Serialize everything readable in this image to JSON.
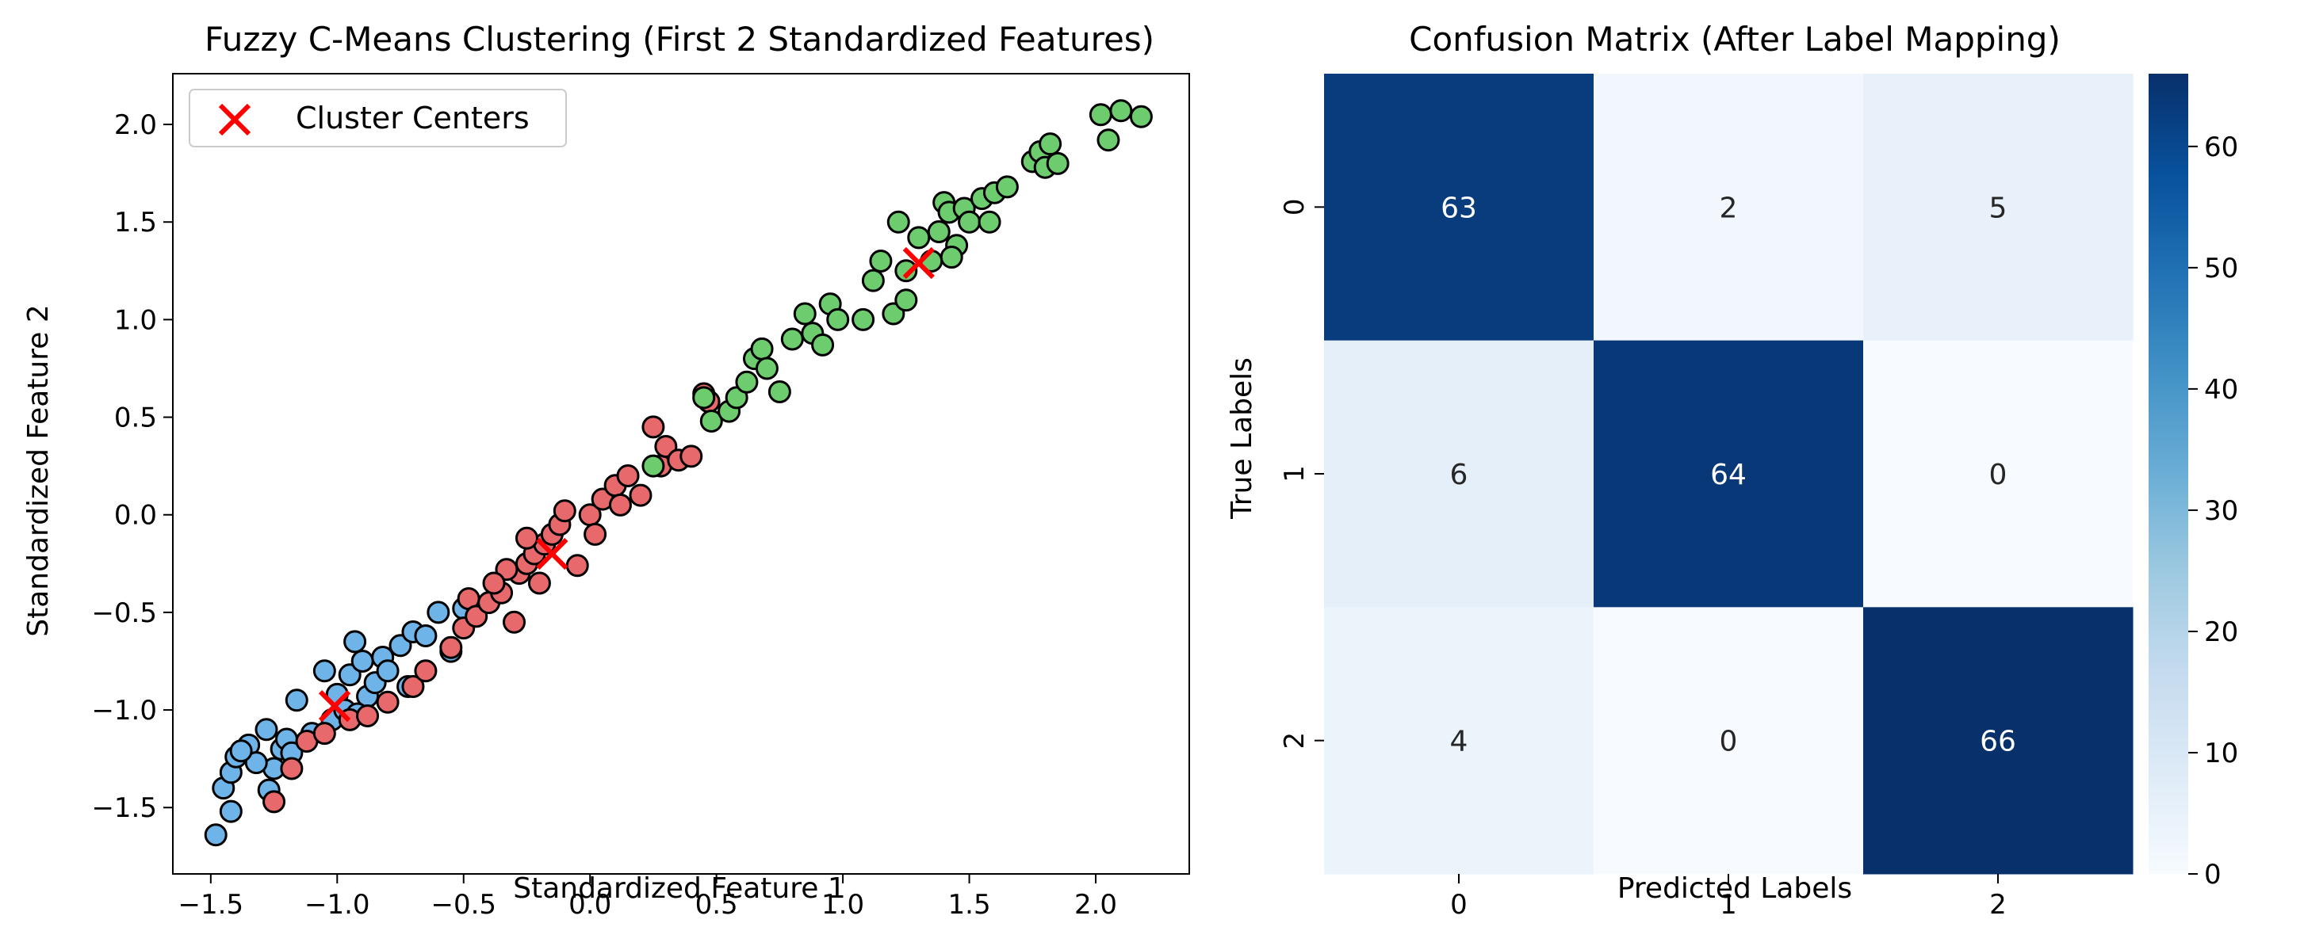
{
  "chart_data": [
    {
      "type": "scatter",
      "title": "Fuzzy C-Means Clustering (First 2 Standardized Features)",
      "xlabel": "Standardized Feature 1",
      "ylabel": "Standardized Feature 2",
      "xlim": [
        -1.65,
        2.37
      ],
      "ylim": [
        -1.84,
        2.26
      ],
      "xticks": [
        -1.5,
        -1.0,
        -0.5,
        0.0,
        0.5,
        1.0,
        1.5,
        2.0
      ],
      "xtick_labels": [
        "−1.5",
        "−1.0",
        "−0.5",
        "0.0",
        "0.5",
        "1.0",
        "1.5",
        "2.0"
      ],
      "yticks": [
        -1.5,
        -1.0,
        -0.5,
        0.0,
        0.5,
        1.0,
        1.5,
        2.0
      ],
      "ytick_labels": [
        "−1.5",
        "−1.0",
        "−0.5",
        "0.0",
        "0.5",
        "1.0",
        "1.5",
        "2.0"
      ],
      "legend": {
        "placement": "top-left",
        "entries": [
          "Cluster Centers"
        ]
      },
      "grid": false,
      "colors": {
        "cluster_0": "#e8696b",
        "cluster_1": "#6fb4e8",
        "cluster_2": "#6dcc6d",
        "centers": "#ff0000",
        "edge": "#000000"
      },
      "series": [
        {
          "cluster": 1,
          "color": "#6fb4e8",
          "points": [
            [
              -1.48,
              -1.64
            ],
            [
              -1.42,
              -1.52
            ],
            [
              -1.45,
              -1.4
            ],
            [
              -1.42,
              -1.32
            ],
            [
              -1.4,
              -1.24
            ],
            [
              -1.35,
              -1.18
            ],
            [
              -1.27,
              -1.41
            ],
            [
              -1.25,
              -1.3
            ],
            [
              -1.22,
              -1.2
            ],
            [
              -1.2,
              -1.15
            ],
            [
              -1.28,
              -1.1
            ],
            [
              -1.16,
              -0.95
            ],
            [
              -1.1,
              -1.12
            ],
            [
              -1.05,
              -0.8
            ],
            [
              -1.02,
              -1.05
            ],
            [
              -1.0,
              -0.92
            ],
            [
              -0.97,
              -1.0
            ],
            [
              -0.95,
              -0.82
            ],
            [
              -0.93,
              -0.65
            ],
            [
              -0.9,
              -0.75
            ],
            [
              -0.88,
              -0.93
            ],
            [
              -0.85,
              -0.86
            ],
            [
              -0.82,
              -0.73
            ],
            [
              -0.8,
              -0.8
            ],
            [
              -0.75,
              -0.67
            ],
            [
              -0.72,
              -0.88
            ],
            [
              -0.7,
              -0.6
            ],
            [
              -0.65,
              -0.62
            ],
            [
              -0.6,
              -0.5
            ],
            [
              -0.55,
              -0.7
            ],
            [
              -0.5,
              -0.48
            ],
            [
              -1.32,
              -1.27
            ],
            [
              -1.18,
              -1.22
            ],
            [
              -1.38,
              -1.21
            ],
            [
              -0.92,
              -1.02
            ]
          ]
        },
        {
          "cluster": 0,
          "color": "#e8696b",
          "points": [
            [
              -1.25,
              -1.47
            ],
            [
              -1.18,
              -1.3
            ],
            [
              -1.12,
              -1.16
            ],
            [
              -1.05,
              -1.12
            ],
            [
              -0.95,
              -1.05
            ],
            [
              -0.88,
              -1.03
            ],
            [
              -0.8,
              -0.96
            ],
            [
              -0.7,
              -0.88
            ],
            [
              -0.65,
              -0.8
            ],
            [
              -0.55,
              -0.68
            ],
            [
              -0.5,
              -0.58
            ],
            [
              -0.48,
              -0.43
            ],
            [
              -0.45,
              -0.52
            ],
            [
              -0.4,
              -0.45
            ],
            [
              -0.35,
              -0.4
            ],
            [
              -0.3,
              -0.55
            ],
            [
              -0.28,
              -0.3
            ],
            [
              -0.25,
              -0.25
            ],
            [
              -0.22,
              -0.2
            ],
            [
              -0.2,
              -0.35
            ],
            [
              -0.18,
              -0.15
            ],
            [
              -0.15,
              -0.1
            ],
            [
              -0.12,
              -0.05
            ],
            [
              -0.1,
              0.02
            ],
            [
              -0.05,
              -0.26
            ],
            [
              0.0,
              0.0
            ],
            [
              0.02,
              -0.1
            ],
            [
              0.05,
              0.08
            ],
            [
              0.1,
              0.15
            ],
            [
              0.15,
              0.2
            ],
            [
              0.2,
              0.1
            ],
            [
              0.25,
              0.45
            ],
            [
              0.28,
              0.25
            ],
            [
              0.3,
              0.35
            ],
            [
              0.35,
              0.28
            ],
            [
              0.4,
              0.3
            ],
            [
              0.45,
              0.62
            ],
            [
              0.47,
              0.58
            ],
            [
              -0.33,
              -0.28
            ],
            [
              -0.25,
              -0.12
            ],
            [
              0.12,
              0.05
            ],
            [
              -0.38,
              -0.35
            ]
          ]
        },
        {
          "cluster": 2,
          "color": "#6dcc6d",
          "points": [
            [
              0.25,
              0.25
            ],
            [
              0.45,
              0.6
            ],
            [
              0.48,
              0.48
            ],
            [
              0.55,
              0.53
            ],
            [
              0.58,
              0.6
            ],
            [
              0.62,
              0.68
            ],
            [
              0.65,
              0.8
            ],
            [
              0.68,
              0.85
            ],
            [
              0.7,
              0.75
            ],
            [
              0.75,
              0.63
            ],
            [
              0.8,
              0.9
            ],
            [
              0.85,
              1.03
            ],
            [
              0.88,
              0.93
            ],
            [
              0.92,
              0.87
            ],
            [
              0.95,
              1.08
            ],
            [
              0.98,
              1.0
            ],
            [
              1.08,
              1.0
            ],
            [
              1.12,
              1.2
            ],
            [
              1.15,
              1.3
            ],
            [
              1.2,
              1.03
            ],
            [
              1.22,
              1.5
            ],
            [
              1.25,
              1.1
            ],
            [
              1.3,
              1.42
            ],
            [
              1.35,
              1.3
            ],
            [
              1.38,
              1.45
            ],
            [
              1.4,
              1.6
            ],
            [
              1.42,
              1.55
            ],
            [
              1.45,
              1.38
            ],
            [
              1.48,
              1.57
            ],
            [
              1.5,
              1.5
            ],
            [
              1.55,
              1.62
            ],
            [
              1.58,
              1.5
            ],
            [
              1.6,
              1.65
            ],
            [
              1.65,
              1.68
            ],
            [
              1.75,
              1.81
            ],
            [
              1.78,
              1.86
            ],
            [
              1.8,
              1.78
            ],
            [
              1.82,
              1.9
            ],
            [
              1.85,
              1.8
            ],
            [
              2.02,
              2.05
            ],
            [
              2.05,
              1.92
            ],
            [
              2.1,
              2.07
            ],
            [
              2.18,
              2.04
            ],
            [
              1.43,
              1.32
            ],
            [
              1.25,
              1.25
            ]
          ]
        }
      ],
      "centers": [
        [
          -1.01,
          -0.98
        ],
        [
          -0.15,
          -0.2
        ],
        [
          1.3,
          1.29
        ]
      ]
    },
    {
      "type": "heatmap",
      "title": "Confusion Matrix (After Label Mapping)",
      "xlabel": "Predicted Labels",
      "ylabel": "True Labels",
      "categories_x": [
        "0",
        "1",
        "2"
      ],
      "categories_y": [
        "0",
        "1",
        "2"
      ],
      "matrix": [
        [
          63,
          2,
          5
        ],
        [
          6,
          64,
          0
        ],
        [
          4,
          0,
          66
        ]
      ],
      "colormap": "Blues",
      "vmin": 0,
      "vmax": 66,
      "colorbar_ticks": [
        0,
        10,
        20,
        30,
        40,
        50,
        60
      ]
    }
  ]
}
